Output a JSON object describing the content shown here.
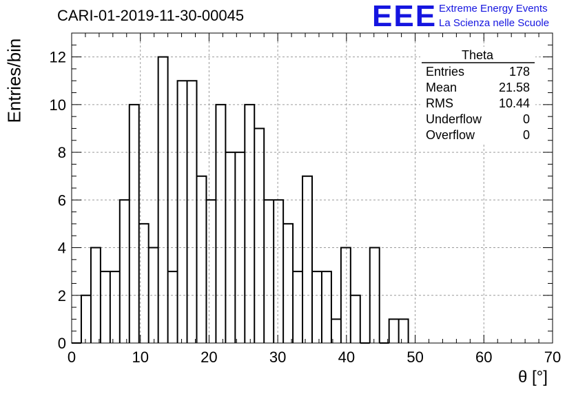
{
  "colors": {
    "brand": "#1515e0",
    "line": "#000000",
    "grid": "#9a9a9a"
  },
  "header": {
    "run_title": "CARI-01-2019-11-30-00045",
    "logo_text": "EEE",
    "brand_line1": "Extreme Energy Events",
    "brand_line2": "La Scienza nelle Scuole"
  },
  "stats_box": {
    "title": "Theta",
    "rows": [
      {
        "label": "Entries",
        "value": "178"
      },
      {
        "label": "Mean",
        "value": "21.58"
      },
      {
        "label": "RMS",
        "value": "10.44"
      },
      {
        "label": "Underflow",
        "value": "0"
      },
      {
        "label": "Overflow",
        "value": "0"
      }
    ]
  },
  "chart_data": {
    "type": "bar",
    "subtype": "histogram-step",
    "title": "CARI-01-2019-11-30-00045",
    "xlabel": "θ [°]",
    "ylabel": "Entries/bin",
    "xlim": [
      0,
      70
    ],
    "ylim": [
      0,
      13
    ],
    "grid": true,
    "bin_width": 1.4,
    "x_ticks": [
      "0",
      "10",
      "20",
      "30",
      "40",
      "50",
      "60",
      "70"
    ],
    "y_ticks": [
      "0",
      "2",
      "4",
      "6",
      "8",
      "10",
      "12"
    ],
    "x_tick_values": [
      0,
      10,
      20,
      30,
      40,
      50,
      60,
      70
    ],
    "y_tick_values": [
      0,
      2,
      4,
      6,
      8,
      10,
      12
    ],
    "bin_edges": [
      0,
      1.4,
      2.8,
      4.2,
      5.6,
      7.0,
      8.4,
      9.8,
      11.2,
      12.6,
      14.0,
      15.4,
      16.8,
      18.2,
      19.6,
      21.0,
      22.4,
      23.8,
      25.2,
      26.6,
      28.0,
      29.4,
      30.8,
      32.2,
      33.6,
      35.0,
      36.4,
      37.8,
      39.2,
      40.6,
      42.0,
      43.4,
      44.8,
      46.2,
      47.6,
      49.0
    ],
    "values": [
      0,
      2,
      4,
      3,
      3,
      6,
      10,
      5,
      4,
      12,
      3,
      11,
      11,
      7,
      6,
      10,
      8,
      8,
      10,
      9,
      6,
      6,
      5,
      3,
      7,
      3,
      3,
      1,
      4,
      2,
      0,
      4,
      0,
      1,
      1
    ]
  }
}
